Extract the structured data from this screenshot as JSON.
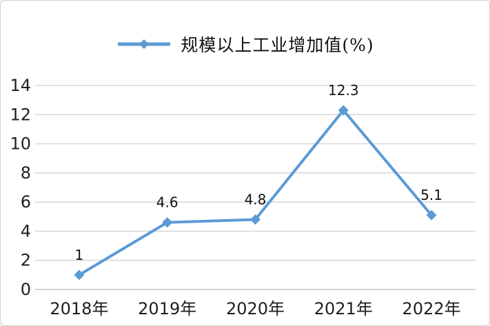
{
  "chart_data": {
    "type": "line",
    "legend": "规模以上工业增加值(%)",
    "legend_position": "top",
    "categories": [
      "2018年",
      "2019年",
      "2020年",
      "2021年",
      "2022年"
    ],
    "values": [
      1,
      4.6,
      4.8,
      12.3,
      5.1
    ],
    "data_labels": [
      "1",
      "4.6",
      "4.8",
      "12.3",
      "5.1"
    ],
    "ylim": [
      0,
      14
    ],
    "ytick_step": 2,
    "ytick_labels": [
      "0",
      "2",
      "4",
      "6",
      "8",
      "10",
      "12",
      "14"
    ],
    "grid": true,
    "marker": "diamond",
    "colors": {
      "line": "#5B9BD5",
      "grid": "#D9D9D9",
      "axis": "#C3C3C3",
      "text": "#1f1f1f",
      "frame_border": "#D2D2D2",
      "background": "#FFFFFF"
    }
  }
}
